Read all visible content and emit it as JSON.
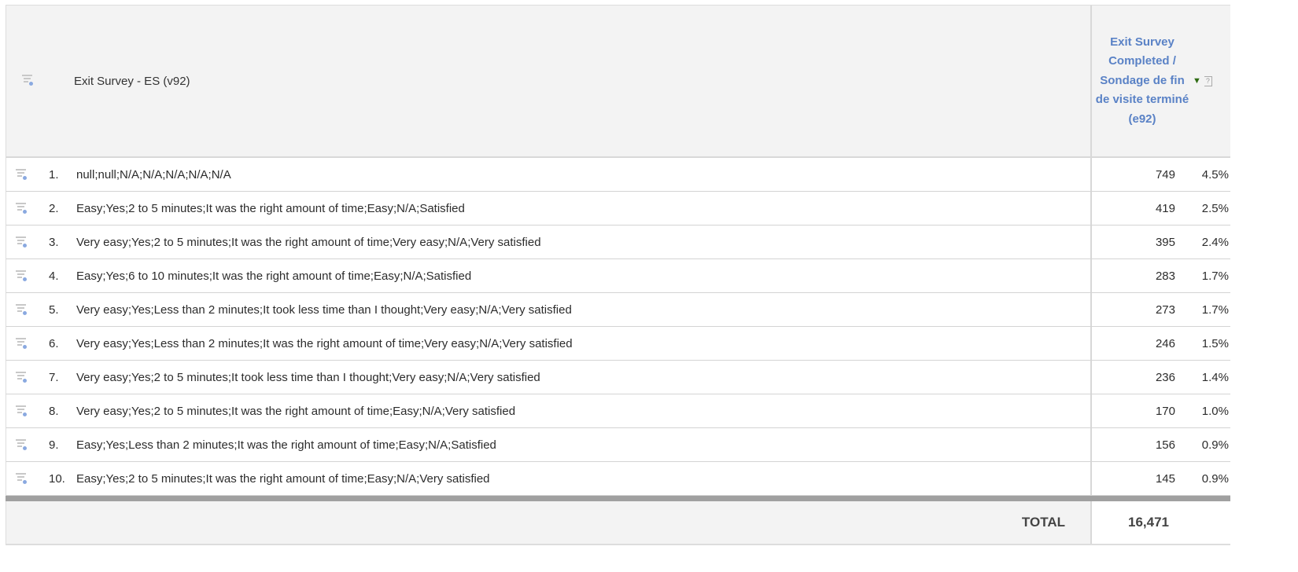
{
  "table": {
    "dimension_header": "Exit Survey - ES (v92)",
    "metric_header": "Exit Survey Completed / Sondage de fin de visite terminé (e92)",
    "sort_icon": "sort-descending-icon",
    "rows": [
      {
        "num": "1.",
        "label": "null;null;N/A;N/A;N/A;N/A;N/A",
        "value": "749",
        "pct": "4.5%"
      },
      {
        "num": "2.",
        "label": "Easy;Yes;2 to 5 minutes;It was the right amount of time;Easy;N/A;Satisfied",
        "value": "419",
        "pct": "2.5%"
      },
      {
        "num": "3.",
        "label": "Very easy;Yes;2 to 5 minutes;It was the right amount of time;Very easy;N/A;Very satisfied",
        "value": "395",
        "pct": "2.4%"
      },
      {
        "num": "4.",
        "label": "Easy;Yes;6 to 10 minutes;It was the right amount of time;Easy;N/A;Satisfied",
        "value": "283",
        "pct": "1.7%"
      },
      {
        "num": "5.",
        "label": "Very easy;Yes;Less than 2 minutes;It took less time than I thought;Very easy;N/A;Very satisfied",
        "value": "273",
        "pct": "1.7%"
      },
      {
        "num": "6.",
        "label": "Very easy;Yes;Less than 2 minutes;It was the right amount of time;Very easy;N/A;Very satisfied",
        "value": "246",
        "pct": "1.5%"
      },
      {
        "num": "7.",
        "label": "Very easy;Yes;2 to 5 minutes;It took less time than I thought;Very easy;N/A;Very satisfied",
        "value": "236",
        "pct": "1.4%"
      },
      {
        "num": "8.",
        "label": "Very easy;Yes;2 to 5 minutes;It was the right amount of time;Easy;N/A;Very satisfied",
        "value": "170",
        "pct": "1.0%"
      },
      {
        "num": "9.",
        "label": "Easy;Yes;Less than 2 minutes;It was the right amount of time;Easy;N/A;Satisfied",
        "value": "156",
        "pct": "0.9%"
      },
      {
        "num": "10.",
        "label": "Easy;Yes;2 to 5 minutes;It was the right amount of time;Easy;N/A;Very satisfied",
        "value": "145",
        "pct": "0.9%"
      }
    ],
    "total_label": "TOTAL",
    "total_value": "16,471"
  },
  "colors": {
    "metric_header": "#5a82c6",
    "sort_arrow": "#2e6b12"
  }
}
